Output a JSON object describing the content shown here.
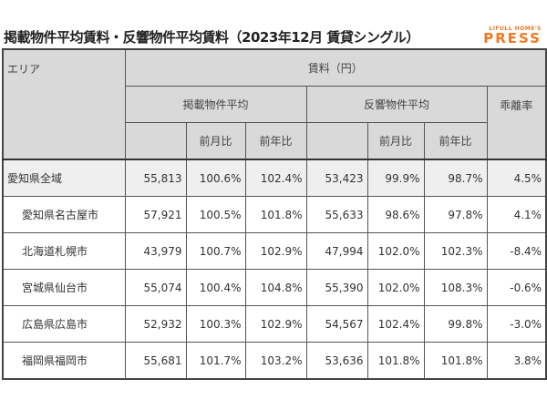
{
  "title": "掲載物件平均賃料・反響物件平均賃料（2023年12月 賃貸シングル）",
  "logo": {
    "small": "LIFULL HOME'S",
    "big": "PRESS",
    "color": "#f07820"
  },
  "header": {
    "area": "エリア",
    "rent": "賃料（円）",
    "listed": "掲載物件平均",
    "response": "反響物件平均",
    "gap": "乖離率",
    "mom": "前月比",
    "yoy": "前年比"
  },
  "rows": [
    {
      "area": "愛知県全域",
      "listed": "55,813",
      "listed_mom": "100.6%",
      "listed_yoy": "102.4%",
      "response": "53,423",
      "response_mom": "99.9%",
      "response_yoy": "98.7%",
      "gap": "4.5%"
    },
    {
      "area": "愛知県名古屋市",
      "listed": "57,921",
      "listed_mom": "100.5%",
      "listed_yoy": "101.8%",
      "response": "55,633",
      "response_mom": "98.6%",
      "response_yoy": "97.8%",
      "gap": "4.1%"
    },
    {
      "area": "北海道札幌市",
      "listed": "43,979",
      "listed_mom": "100.7%",
      "listed_yoy": "102.9%",
      "response": "47,994",
      "response_mom": "102.0%",
      "response_yoy": "102.3%",
      "gap": "-8.4%"
    },
    {
      "area": "宮城県仙台市",
      "listed": "55,074",
      "listed_mom": "100.4%",
      "listed_yoy": "104.8%",
      "response": "55,390",
      "response_mom": "102.0%",
      "response_yoy": "108.3%",
      "gap": "-0.6%"
    },
    {
      "area": "広島県広島市",
      "listed": "52,932",
      "listed_mom": "100.3%",
      "listed_yoy": "102.9%",
      "response": "54,567",
      "response_mom": "102.4%",
      "response_yoy": "99.8%",
      "gap": "-3.0%"
    },
    {
      "area": "福岡県福岡市",
      "listed": "55,681",
      "listed_mom": "101.7%",
      "listed_yoy": "103.2%",
      "response": "53,636",
      "response_mom": "101.8%",
      "response_yoy": "101.8%",
      "gap": "3.8%"
    }
  ]
}
